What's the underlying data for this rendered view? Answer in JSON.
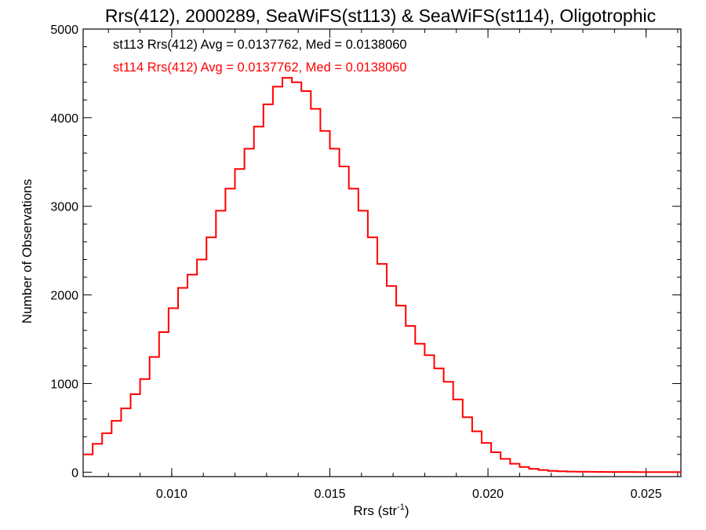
{
  "chart_data": {
    "type": "line",
    "title": "Rrs(412), 2000289, SeaWiFS(st113) & SeaWiFS(st114), Oligotrophic",
    "xlabel_main": "Rrs (str",
    "xlabel_sup": "-1",
    "xlabel_close": ")",
    "ylabel": "Number of Observations",
    "xlim": [
      0.0072,
      0.0261
    ],
    "ylim": [
      -50,
      5000
    ],
    "x_ticks": [
      0.01,
      0.015,
      0.02,
      0.025
    ],
    "x_tick_labels": [
      "0.010",
      "0.015",
      "0.020",
      "0.025"
    ],
    "y_ticks": [
      0,
      1000,
      2000,
      3000,
      4000,
      5000
    ],
    "y_tick_labels": [
      "0",
      "1000",
      "2000",
      "3000",
      "4000",
      "5000"
    ],
    "annotations": [
      {
        "text": "st113 Rrs(412) Avg = 0.0137762, Med = 0.0138060",
        "color": "#000000"
      },
      {
        "text": "st114 Rrs(412) Avg = 0.0137762, Med = 0.0138060",
        "color": "#ff0000"
      }
    ],
    "series": [
      {
        "color": "#ff0000",
        "x": [
          0.0072,
          0.0075,
          0.0078,
          0.0081,
          0.0084,
          0.0087,
          0.009,
          0.0093,
          0.0096,
          0.0099,
          0.0102,
          0.0105,
          0.0108,
          0.0111,
          0.0114,
          0.0117,
          0.012,
          0.0123,
          0.0126,
          0.0129,
          0.0132,
          0.0135,
          0.0138,
          0.0141,
          0.0144,
          0.0147,
          0.015,
          0.0153,
          0.0156,
          0.0159,
          0.0162,
          0.0165,
          0.0168,
          0.0171,
          0.0174,
          0.0177,
          0.018,
          0.0183,
          0.0186,
          0.0189,
          0.0192,
          0.0195,
          0.0198,
          0.0201,
          0.0204,
          0.0207,
          0.021,
          0.0213,
          0.0216,
          0.0219,
          0.0222,
          0.0225,
          0.0228,
          0.0231,
          0.0234,
          0.0237,
          0.024,
          0.0243,
          0.0246,
          0.0249,
          0.0252,
          0.0255,
          0.0258,
          0.0261
        ],
        "y": [
          200,
          320,
          440,
          580,
          720,
          880,
          1050,
          1300,
          1580,
          1850,
          2080,
          2230,
          2400,
          2650,
          2950,
          3200,
          3420,
          3650,
          3900,
          4150,
          4350,
          4450,
          4400,
          4300,
          4100,
          3850,
          3650,
          3450,
          3200,
          2950,
          2650,
          2350,
          2100,
          1880,
          1650,
          1450,
          1320,
          1170,
          1020,
          820,
          620,
          460,
          330,
          225,
          150,
          95,
          58,
          38,
          24,
          15,
          10,
          7,
          5,
          4,
          3,
          2,
          2,
          2,
          1,
          1,
          1,
          1,
          1,
          0
        ]
      }
    ]
  }
}
